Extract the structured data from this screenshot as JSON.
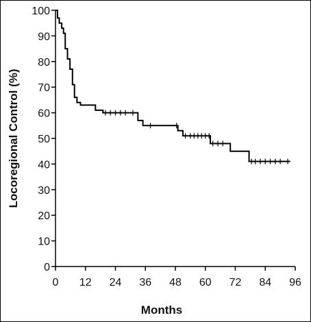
{
  "chart_data": {
    "type": "line",
    "title": "",
    "xlabel": "Months",
    "ylabel": "Locoregional Control (%)",
    "xlim": [
      0,
      96
    ],
    "ylim": [
      0,
      100
    ],
    "x_ticks": [
      0,
      12,
      24,
      36,
      48,
      60,
      72,
      84,
      96
    ],
    "y_ticks": [
      0,
      10,
      20,
      30,
      40,
      50,
      60,
      70,
      80,
      90,
      100
    ],
    "grid": false,
    "line_color": "#000000",
    "series": [
      {
        "step_points": [
          [
            0,
            100
          ],
          [
            0.8,
            100
          ],
          [
            0.8,
            97
          ],
          [
            1.5,
            97
          ],
          [
            1.5,
            95
          ],
          [
            2.5,
            95
          ],
          [
            2.5,
            93
          ],
          [
            3.2,
            93
          ],
          [
            3.2,
            91
          ],
          [
            3.9,
            91
          ],
          [
            3.9,
            85
          ],
          [
            4.8,
            85
          ],
          [
            4.8,
            81
          ],
          [
            5.8,
            81
          ],
          [
            5.8,
            77
          ],
          [
            6.8,
            77
          ],
          [
            6.8,
            71
          ],
          [
            7.6,
            71
          ],
          [
            7.6,
            66
          ],
          [
            8.6,
            66
          ],
          [
            8.6,
            64
          ],
          [
            10,
            64
          ],
          [
            10,
            63
          ],
          [
            16,
            63
          ],
          [
            16,
            61
          ],
          [
            19,
            61
          ],
          [
            19,
            60
          ],
          [
            33,
            60
          ],
          [
            33,
            57
          ],
          [
            35,
            57
          ],
          [
            35,
            55
          ],
          [
            49,
            55
          ],
          [
            49,
            53
          ],
          [
            51,
            53
          ],
          [
            51,
            51
          ],
          [
            62,
            51
          ],
          [
            62,
            48
          ],
          [
            70,
            48
          ],
          [
            70,
            45
          ],
          [
            77.5,
            45
          ],
          [
            77.5,
            41
          ],
          [
            94,
            41
          ]
        ],
        "censor_x": [
          20,
          22,
          24,
          26,
          28,
          31,
          38,
          48.5,
          52,
          54,
          55.5,
          57,
          58.5,
          60,
          61.5,
          63,
          65,
          67,
          78.5,
          80,
          82,
          84,
          86,
          88,
          90,
          93
        ]
      }
    ]
  }
}
